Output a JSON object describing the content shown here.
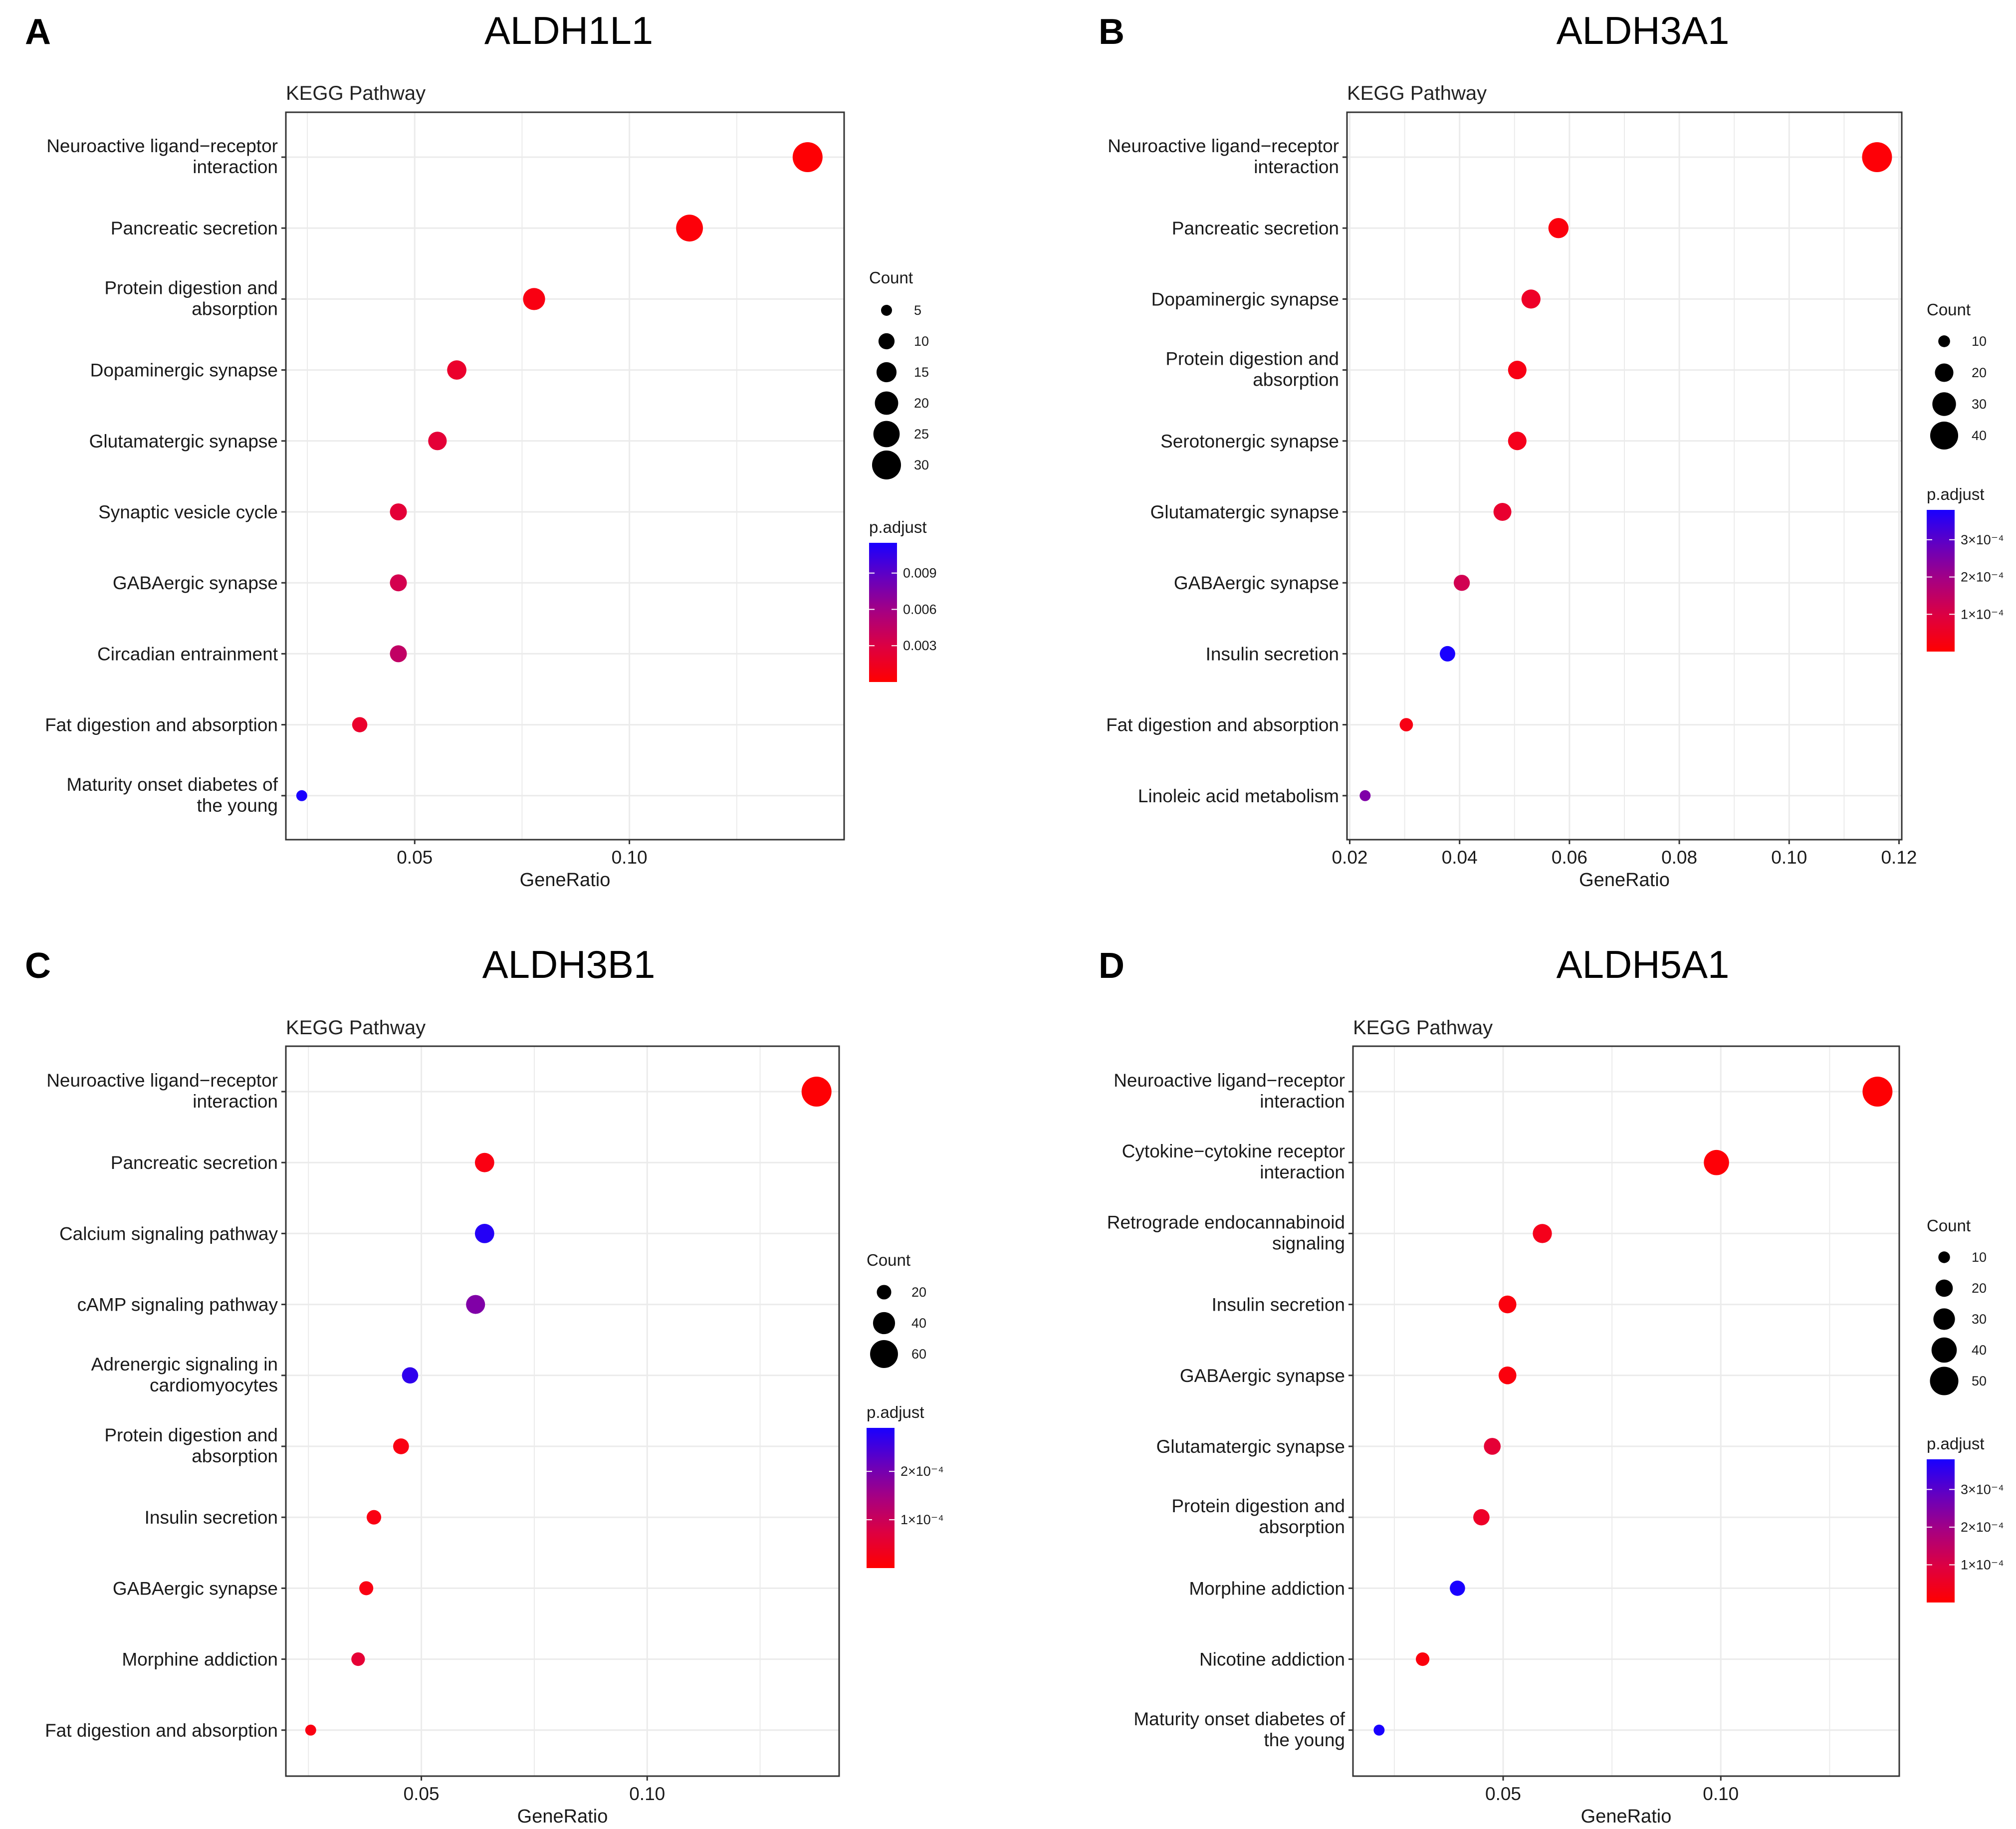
{
  "chart_data": [
    {
      "panel": "A",
      "title": "ALDH1L1",
      "type": "scatter",
      "subtitle": "KEGG Pathway",
      "xlabel": "GeneRatio",
      "xlim": [
        0.02,
        0.15
      ],
      "xticks": [
        0.05,
        0.1
      ],
      "xtick_labels": [
        "0.05",
        "0.10"
      ],
      "categories": [
        "Neuroactive ligand−receptor|interaction",
        "Pancreatic secretion",
        "Protein digestion and|absorption",
        "Dopaminergic synapse",
        "Glutamatergic synapse",
        "Synaptic vesicle cycle",
        "GABAergic synapse",
        "Circadian entrainment",
        "Fat digestion and absorption",
        "Maturity onset diabetes of|the young"
      ],
      "points": [
        {
          "x": 0.1415,
          "count": 32,
          "padj": 0.0002
        },
        {
          "x": 0.114,
          "count": 26,
          "padj": 0.0004
        },
        {
          "x": 0.0778,
          "count": 18,
          "padj": 0.0008
        },
        {
          "x": 0.0598,
          "count": 14,
          "padj": 0.002
        },
        {
          "x": 0.0553,
          "count": 13,
          "padj": 0.0025
        },
        {
          "x": 0.0462,
          "count": 11,
          "padj": 0.0025
        },
        {
          "x": 0.0462,
          "count": 11,
          "padj": 0.0035
        },
        {
          "x": 0.0462,
          "count": 11,
          "padj": 0.0045
        },
        {
          "x": 0.0372,
          "count": 9,
          "padj": 0.002
        },
        {
          "x": 0.0237,
          "count": 5,
          "padj": 0.0115
        }
      ],
      "size_legend": {
        "title": "Count",
        "values": [
          5,
          10,
          15,
          20,
          25,
          30
        ],
        "labels": [
          "5",
          "10",
          "15",
          "20",
          "25",
          "30"
        ]
      },
      "color_legend": {
        "title": "p.adjust",
        "range": [
          0.0,
          0.0115
        ],
        "ticks": [
          0.003,
          0.006,
          0.009
        ],
        "tick_labels": [
          "0.003",
          "0.006",
          "0.009"
        ]
      }
    },
    {
      "panel": "B",
      "title": "ALDH3A1",
      "type": "scatter",
      "subtitle": "KEGG Pathway",
      "xlabel": "GeneRatio",
      "xlim": [
        0.0195,
        0.1205
      ],
      "xticks": [
        0.02,
        0.04,
        0.06,
        0.08,
        0.1,
        0.12
      ],
      "xtick_labels": [
        "0.02",
        "0.04",
        "0.06",
        "0.08",
        "0.10",
        "0.12"
      ],
      "categories": [
        "Neuroactive ligand−receptor|interaction",
        "Pancreatic secretion",
        "Dopaminergic synapse",
        "Protein digestion and|absorption",
        "Serotonergic synapse",
        "Glutamatergic synapse",
        "GABAergic synapse",
        "Insulin secretion",
        "Fat digestion and absorption",
        "Linoleic acid metabolism"
      ],
      "points": [
        {
          "x": 0.116,
          "count": 45,
          "padj": 1e-05
        },
        {
          "x": 0.058,
          "count": 23,
          "padj": 2e-05
        },
        {
          "x": 0.053,
          "count": 21,
          "padj": 6e-05
        },
        {
          "x": 0.0505,
          "count": 20,
          "padj": 3e-05
        },
        {
          "x": 0.0505,
          "count": 20,
          "padj": 4e-05
        },
        {
          "x": 0.0478,
          "count": 19,
          "padj": 7e-05
        },
        {
          "x": 0.0404,
          "count": 16,
          "padj": 0.00012
        },
        {
          "x": 0.0378,
          "count": 15,
          "padj": 0.00038
        },
        {
          "x": 0.0303,
          "count": 12,
          "padj": 3e-05
        },
        {
          "x": 0.0228,
          "count": 9,
          "padj": 0.00025
        }
      ],
      "size_legend": {
        "title": "Count",
        "values": [
          10,
          20,
          30,
          40
        ],
        "labels": [
          "10",
          "20",
          "30",
          "40"
        ]
      },
      "color_legend": {
        "title": "p.adjust",
        "range": [
          0.0,
          0.00038
        ],
        "ticks": [
          0.0001,
          0.0002,
          0.0003
        ],
        "tick_labels": [
          "1×10⁻⁴",
          "2×10⁻⁴",
          "3×10⁻⁴"
        ]
      }
    },
    {
      "panel": "C",
      "title": "ALDH3B1",
      "type": "scatter",
      "subtitle": "KEGG Pathway",
      "xlabel": "GeneRatio",
      "xlim": [
        0.02,
        0.1425
      ],
      "xticks": [
        0.05,
        0.1
      ],
      "xtick_labels": [
        "0.05",
        "0.10"
      ],
      "categories": [
        "Neuroactive ligand−receptor|interaction",
        "Pancreatic secretion",
        "Calcium signaling pathway",
        "cAMP signaling pathway",
        "Adrenergic signaling in|cardiomyocytes",
        "Protein digestion and|absorption",
        "Insulin secretion",
        "GABAergic synapse",
        "Morphine addiction",
        "Fat digestion and absorption"
      ],
      "points": [
        {
          "x": 0.1375,
          "count": 68,
          "padj": 5e-06
        },
        {
          "x": 0.064,
          "count": 32,
          "padj": 2e-05
        },
        {
          "x": 0.064,
          "count": 32,
          "padj": 0.00028
        },
        {
          "x": 0.062,
          "count": 31,
          "padj": 0.00019
        },
        {
          "x": 0.0475,
          "count": 24,
          "padj": 0.00027
        },
        {
          "x": 0.0455,
          "count": 23,
          "padj": 2e-05
        },
        {
          "x": 0.0395,
          "count": 20,
          "padj": 2e-05
        },
        {
          "x": 0.0378,
          "count": 19,
          "padj": 2e-05
        },
        {
          "x": 0.036,
          "count": 18,
          "padj": 6e-05
        },
        {
          "x": 0.0255,
          "count": 13,
          "padj": 2e-05
        }
      ],
      "size_legend": {
        "title": "Count",
        "values": [
          20,
          40,
          60
        ],
        "labels": [
          "20",
          "40",
          "60"
        ]
      },
      "color_legend": {
        "title": "p.adjust",
        "range": [
          0.0,
          0.00029
        ],
        "ticks": [
          0.0001,
          0.0002
        ],
        "tick_labels": [
          "1×10⁻⁴",
          "2×10⁻⁴"
        ]
      }
    },
    {
      "panel": "D",
      "title": "ALDH5A1",
      "type": "scatter",
      "subtitle": "KEGG Pathway",
      "xlabel": "GeneRatio",
      "xlim": [
        0.0155,
        0.141
      ],
      "xticks": [
        0.05,
        0.1
      ],
      "xtick_labels": [
        "0.05",
        "0.10"
      ],
      "categories": [
        "Neuroactive ligand−receptor|interaction",
        "Cytokine−cytokine receptor|interaction",
        "Retrograde endocannabinoid|signaling",
        "Insulin secretion",
        "GABAergic synapse",
        "Glutamatergic synapse",
        "Protein digestion and|absorption",
        "Morphine addiction",
        "Nicotine addiction",
        "Maturity onset diabetes of|the young"
      ],
      "points": [
        {
          "x": 0.136,
          "count": 55,
          "padj": 5e-06
        },
        {
          "x": 0.099,
          "count": 40,
          "padj": 1e-05
        },
        {
          "x": 0.059,
          "count": 24,
          "padj": 4e-05
        },
        {
          "x": 0.051,
          "count": 21,
          "padj": 2e-05
        },
        {
          "x": 0.051,
          "count": 21,
          "padj": 2e-05
        },
        {
          "x": 0.0475,
          "count": 19,
          "padj": 8e-05
        },
        {
          "x": 0.045,
          "count": 18,
          "padj": 6e-05
        },
        {
          "x": 0.0395,
          "count": 16,
          "padj": 0.00038
        },
        {
          "x": 0.0315,
          "count": 13,
          "padj": 2e-05
        },
        {
          "x": 0.0215,
          "count": 9,
          "padj": 0.00038
        }
      ],
      "size_legend": {
        "title": "Count",
        "values": [
          10,
          20,
          30,
          40,
          50
        ],
        "labels": [
          "10",
          "20",
          "30",
          "40",
          "50"
        ]
      },
      "color_legend": {
        "title": "p.adjust",
        "range": [
          0.0,
          0.00038
        ],
        "ticks": [
          0.0001,
          0.0002,
          0.0003
        ],
        "tick_labels": [
          "1×10⁻⁴",
          "2×10⁻⁴",
          "3×10⁻⁴"
        ]
      }
    }
  ]
}
